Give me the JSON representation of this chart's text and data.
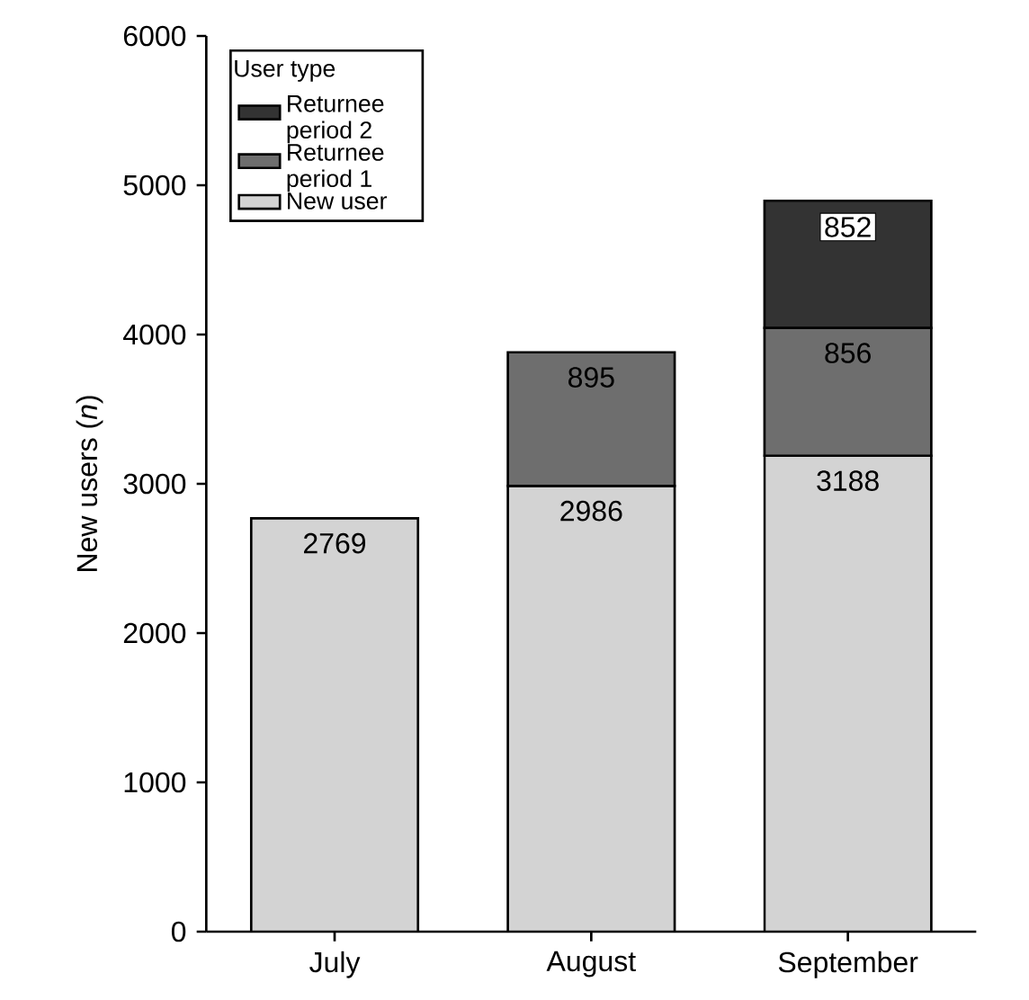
{
  "chart_data": {
    "type": "bar",
    "stacked": true,
    "ylabel": "New users (*n*)",
    "legend_title": "User type",
    "legend": "top left",
    "categories": [
      "July",
      "August",
      "September"
    ],
    "series": [
      {
        "name": "New user",
        "color": "#d3d3d3",
        "values": [
          2769,
          2986,
          3188
        ]
      },
      {
        "name": "Returnee period 1",
        "color": "#6e6e6e",
        "values": [
          null,
          895,
          856
        ]
      },
      {
        "name": "Returnee period 2",
        "color": "#333333",
        "values": [
          null,
          null,
          852
        ]
      }
    ],
    "data_labels": true,
    "ylim": [
      0,
      6000
    ],
    "yticks": [
      0,
      1000,
      2000,
      3000,
      4000,
      5000,
      6000
    ]
  }
}
